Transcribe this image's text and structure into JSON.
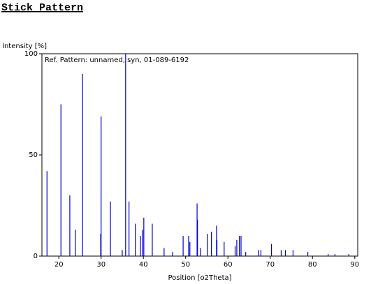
{
  "chart_data": {
    "type": "stick",
    "title": "Stick Pattern",
    "ylabel": "Intensity [%]",
    "xlabel": "Position [o2Theta]",
    "annotation": "Ref. Pattern: unnamed, syn, 01-089-6192",
    "color": "#0000cc",
    "x": [
      17.2,
      20.5,
      22.6,
      23.9,
      25.6,
      29.9,
      30.0,
      32.2,
      35.0,
      35.8,
      36.6,
      38.1,
      39.3,
      39.8,
      40.1,
      42.1,
      44.9,
      46.9,
      49.4,
      50.7,
      51.0,
      52.7,
      52.8,
      53.5,
      55.1,
      56.1,
      57.3,
      57.4,
      59.1,
      61.7,
      62.1,
      62.7,
      63.1,
      64.2,
      67.2,
      67.8,
      70.3,
      72.6,
      73.6,
      75.4,
      78.9,
      83.7,
      85.3,
      88.6
    ],
    "values": [
      42,
      75,
      30,
      13,
      90,
      11,
      69,
      27,
      3,
      100,
      27,
      16,
      10,
      13,
      19,
      16,
      4,
      2,
      10,
      10,
      7,
      26,
      18,
      4,
      11,
      12,
      15,
      8,
      7,
      5,
      8,
      10,
      10,
      2,
      3,
      3,
      6,
      3,
      3,
      3,
      2,
      1,
      1,
      1
    ],
    "xlim": [
      16,
      90.7
    ],
    "ylim": [
      0,
      100
    ],
    "xticks": [
      20,
      30,
      40,
      50,
      60,
      70,
      80,
      90
    ],
    "yticks": [
      0,
      50,
      100
    ]
  }
}
